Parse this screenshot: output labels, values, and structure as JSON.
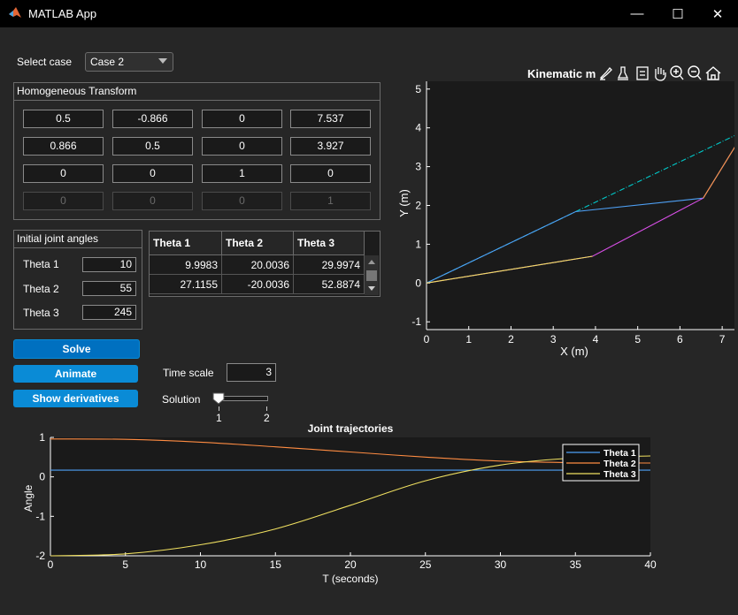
{
  "window": {
    "title": "MATLAB App",
    "minimize": "—",
    "maximize": "☐",
    "close": "✕"
  },
  "case_select": {
    "label": "Select case",
    "value": "Case 2"
  },
  "transform": {
    "title": "Homogeneous Transform",
    "rows": [
      [
        "0.5",
        "-0.866",
        "0",
        "7.537"
      ],
      [
        "0.866",
        "0.5",
        "0",
        "3.927"
      ],
      [
        "0",
        "0",
        "1",
        "0"
      ],
      [
        "0",
        "0",
        "0",
        "1"
      ]
    ]
  },
  "initial_angles": {
    "title": "Initial joint angles",
    "theta1_label": "Theta 1",
    "theta1_value": "10",
    "theta2_label": "Theta 2",
    "theta2_value": "55",
    "theta3_label": "Theta 3",
    "theta3_value": "245"
  },
  "solution_table": {
    "headers": [
      "Theta 1",
      "Theta 2",
      "Theta 3"
    ],
    "rows": [
      [
        "9.9983",
        "20.0036",
        "29.9974"
      ],
      [
        "27.1155",
        "-20.0036",
        "52.8874"
      ]
    ]
  },
  "buttons": {
    "solve": "Solve",
    "animate": "Animate",
    "derivatives": "Show derivatives"
  },
  "time_scale": {
    "label": "Time scale",
    "value": "3"
  },
  "solution_slider": {
    "label": "Solution",
    "tick1": "1",
    "tick2": "2",
    "value": 1
  },
  "kinematic_plot": {
    "title": "Kinematic m",
    "xlabel": "X (m)",
    "ylabel": "Y (m)",
    "xticks": [
      "0",
      "1",
      "2",
      "3",
      "4",
      "5",
      "6",
      "7"
    ],
    "yticks": [
      "5",
      "4",
      "3",
      "2",
      "1",
      "0",
      "-1"
    ],
    "toolbar_icons": [
      "brush-icon",
      "datatip-icon",
      "legend-icon",
      "pan-icon",
      "zoom-in-icon",
      "zoom-out-icon",
      "home-icon"
    ]
  },
  "chart_data": [
    {
      "type": "line",
      "title": "",
      "xlabel": "X (m)",
      "ylabel": "Y (m)",
      "xlim": [
        0,
        7.5
      ],
      "ylim": [
        -1.2,
        5.2
      ],
      "series": [
        {
          "color": "#00c8c8",
          "style": "dashdot",
          "x": [
            0,
            7.537
          ],
          "y": [
            0,
            3.927
          ]
        },
        {
          "color": "#4ea0f5",
          "x": [
            0,
            3.53,
            6.55,
            7.537
          ],
          "y": [
            0,
            1.84,
            2.19,
            3.927
          ]
        },
        {
          "color": "#ff8c42",
          "x": [
            6.55,
            7.537
          ],
          "y": [
            2.19,
            3.927
          ]
        },
        {
          "color": "#d94fe8",
          "x": [
            0,
            3.93,
            6.55
          ],
          "y": [
            0,
            0.69,
            2.19
          ]
        },
        {
          "color": "#f0e060",
          "x": [
            0,
            3.93
          ],
          "y": [
            0,
            0.69
          ]
        }
      ]
    },
    {
      "type": "line",
      "title": "Joint trajectories",
      "xlabel": "T (seconds)",
      "ylabel": "Angle",
      "xlim": [
        0,
        40
      ],
      "ylim": [
        -2,
        1
      ],
      "xticks": [
        "0",
        "5",
        "10",
        "15",
        "20",
        "25",
        "30",
        "35",
        "40"
      ],
      "yticks": [
        "1",
        "0",
        "-1",
        "-2"
      ],
      "legend_position": "top-right",
      "series": [
        {
          "name": "Theta 1",
          "color": "#4ea0f5",
          "x": [
            0,
            40
          ],
          "y": [
            0.17,
            0.17
          ]
        },
        {
          "name": "Theta 2",
          "color": "#ff8c42",
          "x": [
            0,
            5,
            10,
            15,
            20,
            25,
            30,
            35,
            40
          ],
          "y": [
            0.96,
            0.95,
            0.88,
            0.76,
            0.63,
            0.5,
            0.4,
            0.36,
            0.35
          ]
        },
        {
          "name": "Theta 3",
          "color": "#f0e060",
          "x": [
            0,
            5,
            10,
            15,
            20,
            25,
            30,
            35,
            40
          ],
          "y": [
            -2.0,
            -1.95,
            -1.72,
            -1.32,
            -0.72,
            -0.1,
            0.3,
            0.48,
            0.53
          ]
        }
      ]
    }
  ]
}
